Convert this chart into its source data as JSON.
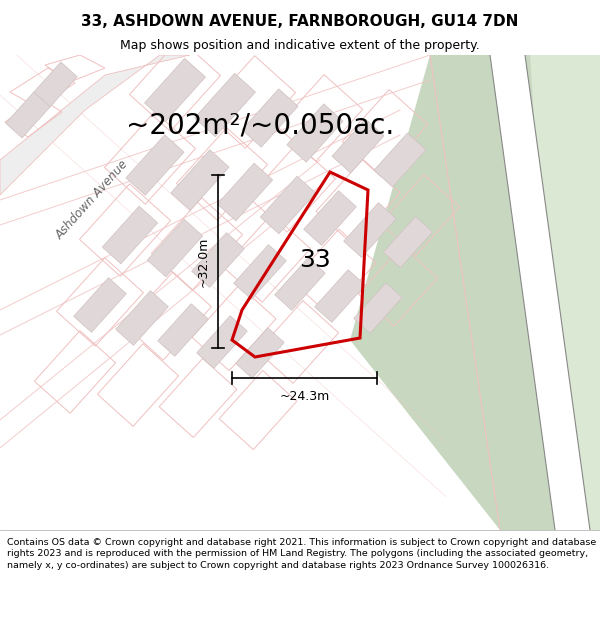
{
  "title": "33, ASHDOWN AVENUE, FARNBOROUGH, GU14 7DN",
  "subtitle": "Map shows position and indicative extent of the property.",
  "area_text": "~202m²/~0.050ac.",
  "dim_width": "~24.3m",
  "dim_height": "~32.0m",
  "plot_number": "33",
  "footer": "Contains OS data © Crown copyright and database right 2021. This information is subject to Crown copyright and database rights 2023 and is reproduced with the permission of HM Land Registry. The polygons (including the associated geometry, namely x, y co-ordinates) are subject to Crown copyright and database rights 2023 Ordnance Survey 100026316.",
  "map_bg": "#f5f0f0",
  "road_color": "#f0c0c0",
  "plot_outline_color": "#cc0000",
  "building_fill": "#e0d8d8",
  "building_outline": "#d0c0c0",
  "green1_color": "#c8d8c0",
  "green2_color": "#dae8d4",
  "street_label": "Ashdown Avenue",
  "figsize": [
    6.0,
    6.25
  ],
  "dpi": 100,
  "title_fontsize": 11,
  "subtitle_fontsize": 9,
  "area_fontsize": 20,
  "plot_num_fontsize": 18,
  "dim_fontsize": 9,
  "footer_fontsize": 6.8
}
